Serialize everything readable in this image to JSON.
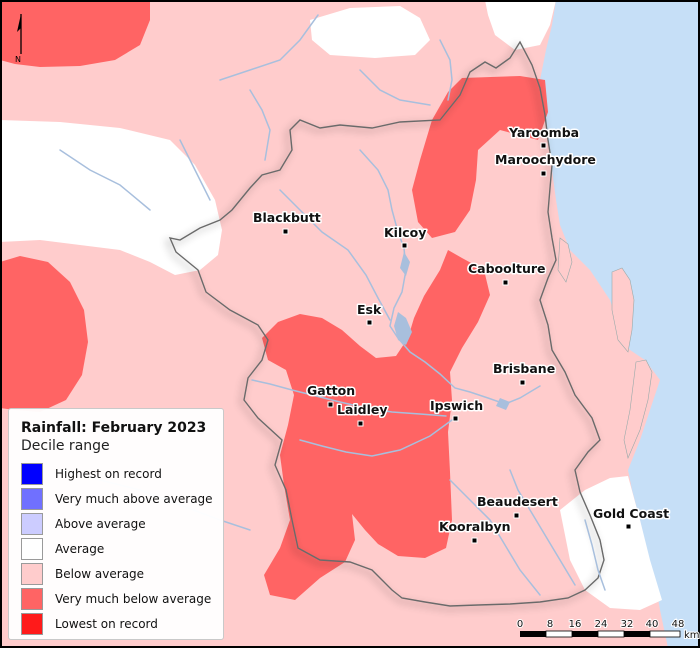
{
  "map": {
    "north_label": "N",
    "colors": {
      "ocean": "#c6dff7",
      "below_average": "#ffcccc",
      "very_much_below": "#ff6464",
      "average": "#ffffff",
      "river": "#a8bfdd",
      "region_border": "#666666"
    },
    "towns": [
      {
        "name": "Yaroomba"
      },
      {
        "name": "Maroochydore"
      },
      {
        "name": "Blackbutt"
      },
      {
        "name": "Kilcoy"
      },
      {
        "name": "Caboolture"
      },
      {
        "name": "Esk"
      },
      {
        "name": "Brisbane"
      },
      {
        "name": "Gatton"
      },
      {
        "name": "Laidley"
      },
      {
        "name": "Ipswich"
      },
      {
        "name": "Beaudesert"
      },
      {
        "name": "Kooralbyn"
      },
      {
        "name": "Gold Coast"
      }
    ]
  },
  "legend": {
    "title": "Rainfall: February 2023",
    "subtitle": "Decile range",
    "items": [
      {
        "label": "Highest on record",
        "color": "#0000ff"
      },
      {
        "label": "Very much above average",
        "color": "#7070ff"
      },
      {
        "label": "Above average",
        "color": "#ccccff"
      },
      {
        "label": "Average",
        "color": "#ffffff"
      },
      {
        "label": "Below average",
        "color": "#ffcccc"
      },
      {
        "label": "Very much below average",
        "color": "#ff6464"
      },
      {
        "label": "Lowest on record",
        "color": "#ff1a1a"
      }
    ]
  },
  "scale_bar": {
    "ticks": [
      "0",
      "8",
      "16",
      "24",
      "32",
      "40",
      "48"
    ],
    "unit": "km"
  }
}
